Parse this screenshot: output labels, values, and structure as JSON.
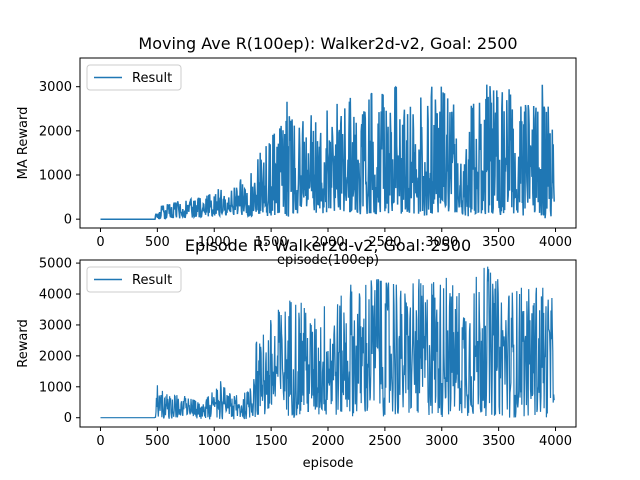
{
  "chart_data": [
    {
      "type": "line",
      "title": "Moving Ave R(100ep): Walker2d-v2, Goal: 2500",
      "xlabel": "episode(100ep)",
      "ylabel": "MA Reward",
      "xlim": [
        -180,
        4180
      ],
      "ylim": [
        -200,
        3650
      ],
      "xticks": [
        0,
        500,
        1000,
        1500,
        2000,
        2500,
        3000,
        3500,
        4000
      ],
      "yticks": [
        0,
        1000,
        2000,
        3000
      ],
      "legend": "top-left",
      "grid": false,
      "series": [
        {
          "name": "Result",
          "color": "#1f77b4",
          "envelope_x": [
            0,
            480,
            500,
            700,
            900,
            1000,
            1050,
            1100,
            1200,
            1300,
            1400,
            1500,
            1550,
            1600,
            1650,
            1680,
            1700,
            1750,
            1800,
            1900,
            2000,
            2100,
            2200,
            2300,
            2400,
            2500,
            2600,
            2700,
            2800,
            2900,
            3000,
            3100,
            3200,
            3300,
            3400,
            3500,
            3600,
            3700,
            3800,
            3850,
            3870,
            3900,
            3950,
            3990
          ],
          "envelope_max": [
            30,
            30,
            280,
            430,
            480,
            620,
            780,
            500,
            900,
            900,
            1500,
            1800,
            2150,
            2100,
            2800,
            3550,
            2300,
            2100,
            2400,
            2600,
            2450,
            2650,
            2750,
            2350,
            2950,
            2800,
            3000,
            2500,
            2700,
            3050,
            3000,
            2600,
            2500,
            3000,
            3050,
            2900,
            3050,
            2600,
            2700,
            2400,
            3480,
            2550,
            2550,
            1850
          ],
          "envelope_min": [
            0,
            0,
            0,
            20,
            50,
            80,
            80,
            80,
            100,
            60,
            100,
            50,
            100,
            150,
            50,
            100,
            150,
            100,
            200,
            100,
            150,
            200,
            150,
            100,
            100,
            150,
            100,
            100,
            50,
            100,
            150,
            150,
            50,
            100,
            100,
            100,
            80,
            50,
            100,
            50,
            100,
            20,
            20,
            100
          ]
        }
      ]
    },
    {
      "type": "line",
      "title": "Episode R: Walker2d-v2, Goal: 2500",
      "xlabel": "episode",
      "ylabel": "Reward",
      "xlim": [
        -180,
        4180
      ],
      "ylim": [
        -300,
        5100
      ],
      "xticks": [
        0,
        500,
        1000,
        1500,
        2000,
        2500,
        3000,
        3500,
        4000
      ],
      "yticks": [
        0,
        1000,
        2000,
        3000,
        4000,
        5000
      ],
      "legend": "top-left",
      "grid": false,
      "series": [
        {
          "name": "Result",
          "color": "#1f77b4",
          "envelope_x": [
            0,
            480,
            500,
            600,
            700,
            800,
            900,
            1000,
            1100,
            1200,
            1300,
            1350,
            1400,
            1500,
            1600,
            1700,
            1750,
            1800,
            1900,
            2000,
            2100,
            2200,
            2300,
            2400,
            2500,
            2600,
            2700,
            2800,
            2900,
            3000,
            3100,
            3200,
            3300,
            3400,
            3500,
            3600,
            3700,
            3800,
            3900,
            3950,
            3990
          ],
          "envelope_max": [
            30,
            30,
            1050,
            700,
            800,
            600,
            500,
            900,
            1400,
            700,
            900,
            2500,
            2400,
            3300,
            3600,
            4300,
            3800,
            3500,
            3300,
            4100,
            3900,
            4300,
            4200,
            4500,
            4400,
            4300,
            4200,
            4500,
            4300,
            4600,
            4400,
            4200,
            4700,
            4900,
            4500,
            4300,
            4200,
            4200,
            4200,
            4100,
            3600
          ],
          "envelope_min": [
            0,
            0,
            0,
            -50,
            0,
            0,
            -50,
            -50,
            -50,
            -50,
            -50,
            0,
            -50,
            0,
            50,
            0,
            0,
            50,
            0,
            0,
            50,
            50,
            0,
            0,
            50,
            0,
            50,
            0,
            50,
            0,
            50,
            50,
            0,
            50,
            50,
            0,
            0,
            50,
            0,
            0,
            100
          ]
        }
      ]
    }
  ]
}
